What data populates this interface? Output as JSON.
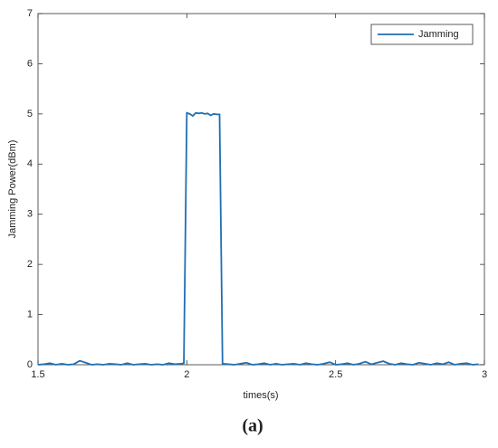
{
  "chart_data": {
    "type": "line",
    "x": [
      1.5,
      1.52,
      1.54,
      1.56,
      1.58,
      1.6,
      1.62,
      1.64,
      1.66,
      1.68,
      1.7,
      1.72,
      1.74,
      1.76,
      1.78,
      1.8,
      1.82,
      1.84,
      1.86,
      1.88,
      1.9,
      1.92,
      1.94,
      1.96,
      1.98,
      1.99,
      2.0,
      2.01,
      2.02,
      2.03,
      2.04,
      2.05,
      2.06,
      2.07,
      2.08,
      2.09,
      2.1,
      2.11,
      2.12,
      2.14,
      2.16,
      2.18,
      2.2,
      2.22,
      2.24,
      2.26,
      2.28,
      2.3,
      2.32,
      2.34,
      2.36,
      2.38,
      2.4,
      2.42,
      2.44,
      2.46,
      2.48,
      2.5,
      2.52,
      2.54,
      2.56,
      2.58,
      2.6,
      2.62,
      2.64,
      2.66,
      2.68,
      2.7,
      2.72,
      2.74,
      2.76,
      2.78,
      2.8,
      2.82,
      2.84,
      2.86,
      2.88,
      2.9,
      2.92,
      2.94,
      2.96,
      2.98
    ],
    "series": [
      {
        "name": "Jamming",
        "color": "#1f6fb2",
        "values": [
          0,
          0.01,
          0.03,
          0,
          0.02,
          0,
          0.01,
          0.08,
          0.04,
          0,
          0.01,
          0,
          0.02,
          0.01,
          0,
          0.03,
          0,
          0.01,
          0.02,
          0,
          0.01,
          0,
          0.03,
          0.01,
          0.02,
          0.03,
          5.02,
          5.0,
          4.96,
          5.02,
          5.01,
          5.02,
          5.0,
          5.01,
          4.97,
          5.0,
          4.99,
          4.99,
          0.02,
          0.01,
          0,
          0.02,
          0.04,
          0,
          0.01,
          0.03,
          0,
          0.02,
          0,
          0.01,
          0.02,
          0,
          0.03,
          0.01,
          0,
          0.02,
          0.05,
          0,
          0.01,
          0.03,
          0,
          0.02,
          0.06,
          0.01,
          0.04,
          0.07,
          0.02,
          0,
          0.03,
          0.01,
          0,
          0.04,
          0.02,
          0,
          0.03,
          0.01,
          0.05,
          0,
          0.02,
          0.03,
          0,
          0.01
        ]
      }
    ],
    "x_label": "times(s)",
    "y_label": "Jamming Power(dBm)",
    "xlim": [
      1.5,
      3
    ],
    "xticks": [
      1.5,
      2,
      2.5,
      3
    ],
    "ylim": [
      0,
      7
    ],
    "yticks": [
      0,
      1,
      2,
      3,
      4,
      5,
      6,
      7
    ],
    "legend": "upper right",
    "caption": "(a)"
  }
}
